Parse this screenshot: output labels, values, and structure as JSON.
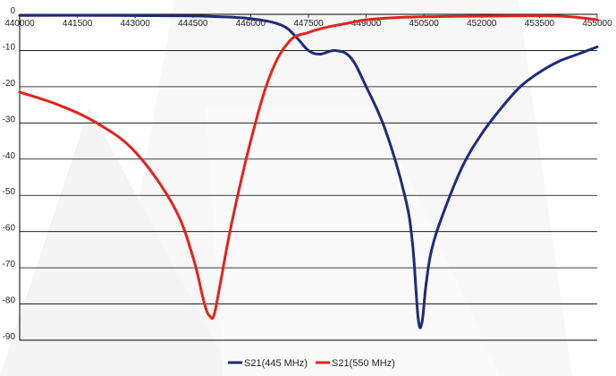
{
  "chart_data": {
    "type": "line",
    "title": "",
    "xlabel": "",
    "ylabel": "",
    "xlim": [
      440000,
      455000
    ],
    "ylim": [
      -90,
      0
    ],
    "x_ticks": [
      "440000",
      "441500",
      "443000",
      "444500",
      "446000",
      "447500",
      "449000",
      "450500",
      "452000",
      "453500",
      "455000"
    ],
    "y_ticks": [
      "0",
      "-10",
      "-20",
      "-30",
      "-40",
      "-50",
      "-60",
      "-70",
      "-80",
      "-90"
    ],
    "grid": "horizontal",
    "legend_position": "bottom-center",
    "series": [
      {
        "name": "S21(445 MHz)",
        "color": "#1f2a7a",
        "x": [
          440000,
          442000,
          444000,
          445000,
          446000,
          446800,
          447200,
          447500,
          447800,
          448200,
          448600,
          449000,
          449500,
          450000,
          450200,
          450350,
          450450,
          450550,
          450700,
          451000,
          451500,
          452000,
          452500,
          453000,
          453500,
          454000,
          454500,
          455000
        ],
        "y": [
          -0.3,
          -0.3,
          -0.4,
          -0.6,
          -1.2,
          -3,
          -6.5,
          -10,
          -11,
          -10,
          -12,
          -20,
          -32,
          -50,
          -63,
          -84,
          -85,
          -75,
          -65,
          -55,
          -42,
          -33,
          -26,
          -20,
          -16,
          -13,
          -11,
          -9
        ]
      },
      {
        "name": "S21(550 MHz)",
        "color": "#e3231b",
        "x": [
          440000,
          441000,
          442000,
          443000,
          444000,
          444500,
          444800,
          444950,
          445050,
          445200,
          445500,
          446000,
          446500,
          447000,
          447500,
          448000,
          448500,
          449000,
          450000,
          452000,
          454000,
          455000
        ],
        "y": [
          -21.5,
          -25,
          -30,
          -38,
          -53,
          -67,
          -80,
          -83.5,
          -83,
          -75,
          -58,
          -35,
          -17,
          -7.5,
          -5,
          -3.5,
          -2.5,
          -1.5,
          -0.8,
          -0.5,
          -0.5,
          -1.5
        ]
      }
    ]
  }
}
